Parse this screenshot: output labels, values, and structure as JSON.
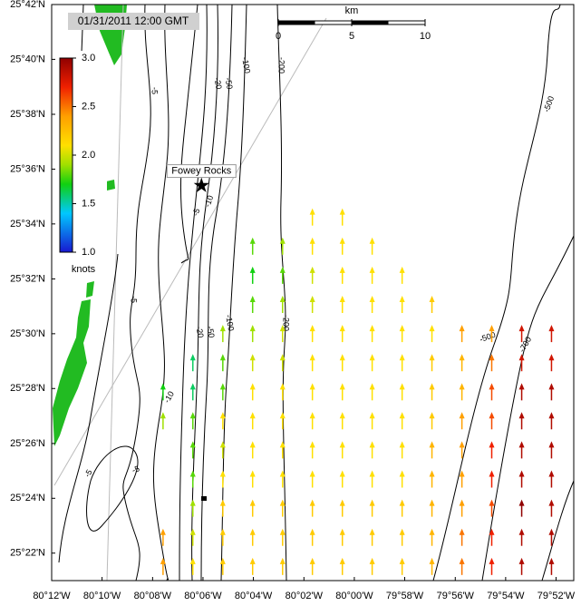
{
  "chart_data": {
    "type": "vector_map",
    "title": "01/31/2011 12:00 GMT",
    "xlim": [
      -80.2,
      -79.855
    ],
    "ylim": [
      25.35,
      25.7
    ],
    "xticks": [
      {
        "value": -80.2,
        "label": "80°12'W"
      },
      {
        "value": -80.1667,
        "label": "80°10'W"
      },
      {
        "value": -80.1333,
        "label": "80°08'W"
      },
      {
        "value": -80.1,
        "label": "80°06'W"
      },
      {
        "value": -80.0667,
        "label": "80°04'W"
      },
      {
        "value": -80.0333,
        "label": "80°02'W"
      },
      {
        "value": -80.0,
        "label": "80°00'W"
      },
      {
        "value": -79.9667,
        "label": "79°58'W"
      },
      {
        "value": -79.9333,
        "label": "79°56'W"
      },
      {
        "value": -79.9,
        "label": "79°54'W"
      },
      {
        "value": -79.8667,
        "label": "79°52'W"
      }
    ],
    "yticks": [
      {
        "value": 25.7,
        "label": "25°42'N"
      },
      {
        "value": 25.6667,
        "label": "25°40'N"
      },
      {
        "value": 25.6333,
        "label": "25°38'N"
      },
      {
        "value": 25.6,
        "label": "25°36'N"
      },
      {
        "value": 25.5667,
        "label": "25°34'N"
      },
      {
        "value": 25.5333,
        "label": "25°32'N"
      },
      {
        "value": 25.5,
        "label": "25°30'N"
      },
      {
        "value": 25.4667,
        "label": "25°28'N"
      },
      {
        "value": 25.4333,
        "label": "25°26'N"
      },
      {
        "value": 25.4,
        "label": "25°24'N"
      },
      {
        "value": 25.3667,
        "label": "25°22'N"
      }
    ],
    "arrow_lons": [
      -80.1264,
      -80.1067,
      -80.0869,
      -80.0672,
      -80.0474,
      -80.0277,
      -80.0079,
      -79.9882,
      -79.9684,
      -79.9487,
      -79.9289,
      -79.9092,
      -79.8894,
      -79.8697
    ],
    "arrow_lats": [
      25.5657,
      25.548,
      25.5303,
      25.5126,
      25.4949,
      25.4772,
      25.4595,
      25.4419,
      25.4242,
      25.4065,
      25.3888,
      25.3711,
      25.3534
    ],
    "speeds": [
      [
        null,
        null,
        null,
        null,
        null,
        2.1,
        2.1,
        null,
        null,
        null,
        null,
        null,
        null,
        null
      ],
      [
        null,
        null,
        null,
        1.8,
        1.9,
        2.1,
        2.1,
        2.1,
        null,
        null,
        null,
        null,
        null,
        null
      ],
      [
        null,
        null,
        null,
        1.7,
        1.8,
        2.0,
        2.1,
        2.1,
        2.1,
        null,
        null,
        null,
        null,
        null
      ],
      [
        null,
        null,
        null,
        1.8,
        1.9,
        2.0,
        2.1,
        2.1,
        2.1,
        2.2,
        null,
        null,
        null,
        null
      ],
      [
        null,
        null,
        1.9,
        1.9,
        2.0,
        2.1,
        2.1,
        2.1,
        2.1,
        2.1,
        2.4,
        2.4,
        2.8,
        2.8
      ],
      [
        null,
        1.6,
        1.8,
        2.0,
        2.0,
        2.1,
        2.1,
        2.1,
        2.1,
        2.2,
        2.3,
        2.5,
        2.8,
        2.8
      ],
      [
        1.7,
        1.6,
        1.8,
        2.1,
        2.1,
        2.1,
        2.1,
        2.1,
        2.1,
        2.2,
        2.3,
        2.6,
        2.9,
        2.9
      ],
      [
        1.9,
        1.8,
        2.1,
        2.1,
        2.1,
        2.1,
        2.1,
        2.1,
        2.1,
        2.2,
        2.4,
        2.6,
        2.9,
        2.9
      ],
      [
        null,
        1.8,
        2.0,
        2.1,
        2.1,
        2.1,
        2.1,
        2.1,
        2.1,
        2.3,
        2.4,
        2.7,
        2.9,
        2.9
      ],
      [
        null,
        1.8,
        2.1,
        2.1,
        2.1,
        2.1,
        2.1,
        2.1,
        2.1,
        2.3,
        2.4,
        2.7,
        2.9,
        2.9
      ],
      [
        null,
        1.9,
        2.2,
        2.2,
        2.2,
        2.2,
        2.2,
        2.2,
        2.2,
        2.3,
        2.4,
        2.6,
        3.0,
        2.9
      ],
      [
        2.4,
        2.0,
        2.2,
        2.2,
        2.2,
        2.2,
        2.2,
        2.2,
        2.2,
        2.3,
        2.5,
        2.7,
        2.9,
        2.9
      ],
      [
        2.4,
        2.1,
        2.2,
        2.2,
        2.2,
        2.2,
        2.2,
        2.2,
        2.2,
        2.3,
        2.5,
        2.7,
        2.9,
        2.9
      ]
    ],
    "colorbar": {
      "label": "knots",
      "clim": [
        1,
        3
      ],
      "ticks": [
        {
          "value": 1,
          "label": "1.0"
        },
        {
          "value": 1.5,
          "label": "1.5"
        },
        {
          "value": 2,
          "label": "2.0"
        },
        {
          "value": 2.5,
          "label": "2.5"
        },
        {
          "value": 3,
          "label": "3.0"
        }
      ]
    },
    "scale_bar": {
      "unit": "km",
      "ticks": [
        0,
        5,
        10
      ]
    },
    "station": {
      "name": "Fowey Rocks",
      "lon": -80.101,
      "lat": 25.59
    },
    "contour_labels": [
      "-5",
      "-20",
      "-50",
      "-100",
      "-200",
      "-500",
      "-10",
      "-5",
      "-5",
      "-20",
      "-50",
      "-100",
      "-200",
      "-500",
      "-700",
      "-5",
      "-5",
      "-10"
    ]
  }
}
